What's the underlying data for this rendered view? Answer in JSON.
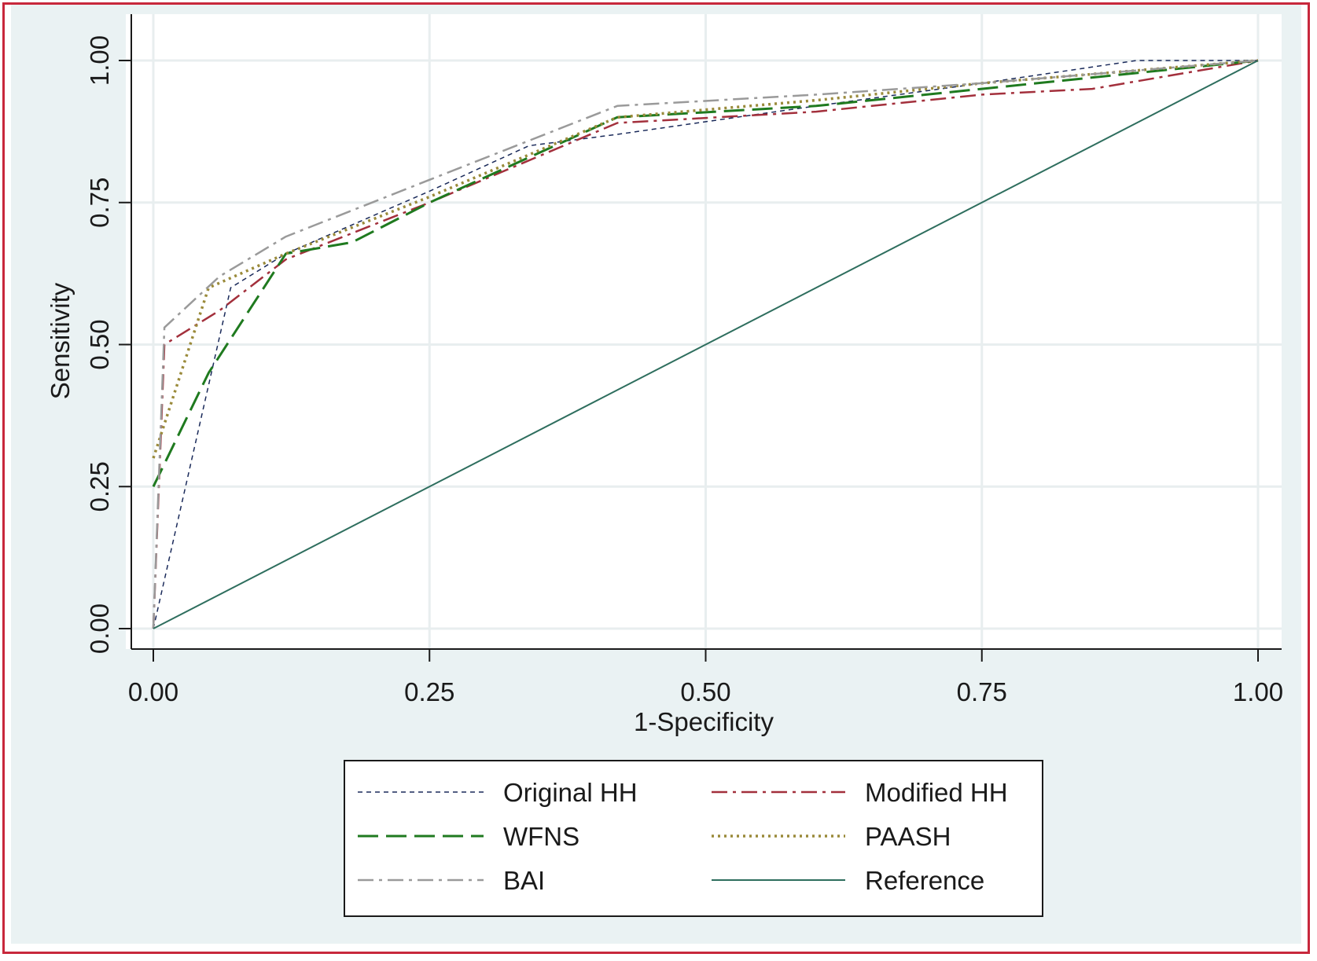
{
  "chart_data": {
    "type": "line",
    "xlabel": "1-Specificity",
    "ylabel": "Sensitivity",
    "xlim": [
      0,
      1
    ],
    "ylim": [
      0,
      1
    ],
    "xticks": [
      "0.00",
      "0.25",
      "0.50",
      "0.75",
      "1.00"
    ],
    "yticks": [
      "0.00",
      "0.25",
      "0.50",
      "0.75",
      "1.00"
    ],
    "tick_values": [
      0,
      0.25,
      0.5,
      0.75,
      1
    ],
    "grid": true,
    "legend_position": "bottom",
    "series": [
      {
        "name": "Original HH",
        "color": "#1a2a5a",
        "dash": "6,5",
        "width": 1.5,
        "x": [
          0,
          0.07,
          0.12,
          0.25,
          0.34,
          0.42,
          0.6,
          0.75,
          0.89,
          1.0
        ],
        "y": [
          0,
          0.6,
          0.66,
          0.77,
          0.85,
          0.87,
          0.92,
          0.96,
          1.0,
          1.0
        ]
      },
      {
        "name": "Modified HH",
        "color": "#a3303c",
        "dash": "20,7,4,7",
        "width": 2.5,
        "x": [
          0,
          0.01,
          0.06,
          0.12,
          0.25,
          0.42,
          0.6,
          0.75,
          0.85,
          1.0
        ],
        "y": [
          0,
          0.5,
          0.56,
          0.65,
          0.75,
          0.89,
          0.91,
          0.94,
          0.95,
          1.0
        ]
      },
      {
        "name": "WFNS",
        "color": "#1f7a1f",
        "dash": "26,10",
        "width": 3,
        "x": [
          0,
          0.05,
          0.12,
          0.18,
          0.25,
          0.42,
          0.6,
          0.75,
          1.0
        ],
        "y": [
          0.25,
          0.45,
          0.66,
          0.68,
          0.75,
          0.9,
          0.92,
          0.95,
          1.0
        ]
      },
      {
        "name": "PAASH",
        "color": "#9a8a3a",
        "dash": "3,5",
        "width": 3.5,
        "x": [
          0,
          0.05,
          0.12,
          0.25,
          0.42,
          0.6,
          0.75,
          1.0
        ],
        "y": [
          0.3,
          0.6,
          0.66,
          0.76,
          0.9,
          0.93,
          0.96,
          1.0
        ]
      },
      {
        "name": "BAI",
        "color": "#9a9a9a",
        "dash": "20,7,4,7",
        "width": 2.5,
        "x": [
          0,
          0.01,
          0.06,
          0.12,
          0.25,
          0.42,
          0.6,
          0.75,
          1.0
        ],
        "y": [
          0,
          0.53,
          0.62,
          0.69,
          0.79,
          0.92,
          0.94,
          0.96,
          1.0
        ]
      },
      {
        "name": "Reference",
        "color": "#2e6e5e",
        "dash": "",
        "width": 2,
        "x": [
          0,
          1
        ],
        "y": [
          0,
          1
        ]
      }
    ]
  }
}
